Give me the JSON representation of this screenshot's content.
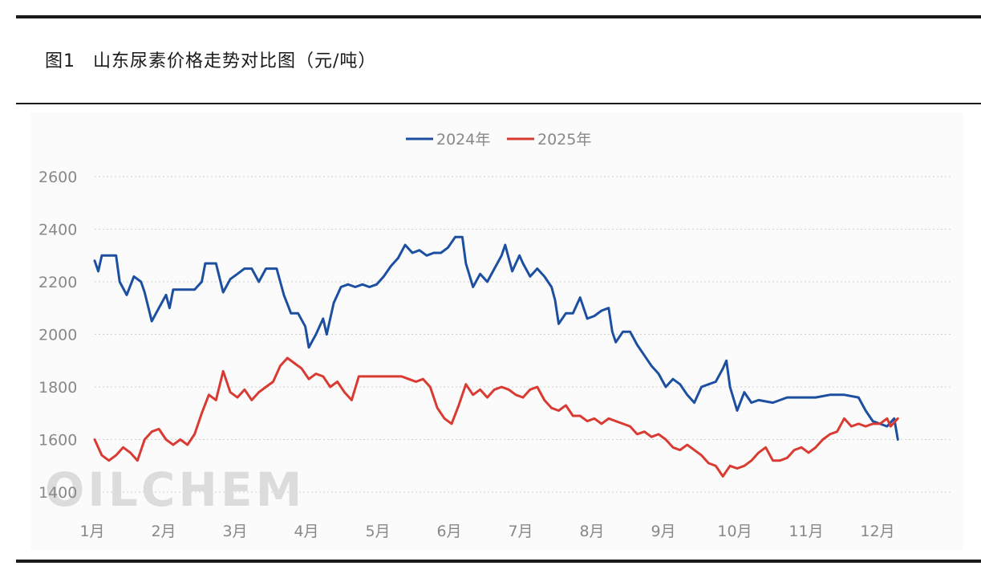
{
  "figure": {
    "number": "图1",
    "title": "山东尿素价格走势对比图（元/吨）"
  },
  "watermark": "OILCHEM",
  "colors": {
    "series_2024": "#1c4fa0",
    "series_2025": "#d93a31",
    "grid": "#d0d0d0",
    "axis_text": "#888888"
  },
  "chart_data": {
    "type": "line",
    "title": "",
    "xlabel": "",
    "ylabel": "",
    "ylim": [
      1400,
      2600
    ],
    "yticks": [
      1400,
      1600,
      1800,
      2000,
      2200,
      2400,
      2600
    ],
    "xlim": [
      1,
      13
    ],
    "x_tick_positions": [
      1,
      2,
      3,
      4,
      5,
      6,
      7,
      8,
      9,
      10,
      11,
      12
    ],
    "x_tick_labels": [
      "1月",
      "2月",
      "3月",
      "4月",
      "5月",
      "6月",
      "7月",
      "8月",
      "9月",
      "10月",
      "11月",
      "12月"
    ],
    "grid": true,
    "legend_position": "top-center",
    "series": [
      {
        "name": "2024年",
        "color": "#1c4fa0",
        "points": [
          [
            1.0,
            2280
          ],
          [
            1.05,
            2240
          ],
          [
            1.1,
            2300
          ],
          [
            1.2,
            2300
          ],
          [
            1.3,
            2300
          ],
          [
            1.35,
            2200
          ],
          [
            1.45,
            2150
          ],
          [
            1.55,
            2220
          ],
          [
            1.65,
            2200
          ],
          [
            1.7,
            2160
          ],
          [
            1.8,
            2050
          ],
          [
            1.9,
            2100
          ],
          [
            2.0,
            2150
          ],
          [
            2.05,
            2100
          ],
          [
            2.1,
            2170
          ],
          [
            2.2,
            2170
          ],
          [
            2.3,
            2170
          ],
          [
            2.4,
            2170
          ],
          [
            2.5,
            2200
          ],
          [
            2.55,
            2270
          ],
          [
            2.7,
            2270
          ],
          [
            2.8,
            2160
          ],
          [
            2.9,
            2210
          ],
          [
            3.0,
            2230
          ],
          [
            3.1,
            2250
          ],
          [
            3.2,
            2250
          ],
          [
            3.3,
            2200
          ],
          [
            3.4,
            2250
          ],
          [
            3.55,
            2250
          ],
          [
            3.65,
            2150
          ],
          [
            3.75,
            2080
          ],
          [
            3.85,
            2080
          ],
          [
            3.95,
            2030
          ],
          [
            4.0,
            1950
          ],
          [
            4.1,
            2000
          ],
          [
            4.2,
            2060
          ],
          [
            4.25,
            2000
          ],
          [
            4.35,
            2120
          ],
          [
            4.45,
            2180
          ],
          [
            4.55,
            2190
          ],
          [
            4.65,
            2180
          ],
          [
            4.75,
            2190
          ],
          [
            4.85,
            2180
          ],
          [
            4.95,
            2190
          ],
          [
            5.05,
            2220
          ],
          [
            5.15,
            2260
          ],
          [
            5.25,
            2290
          ],
          [
            5.35,
            2340
          ],
          [
            5.45,
            2310
          ],
          [
            5.55,
            2320
          ],
          [
            5.65,
            2300
          ],
          [
            5.75,
            2310
          ],
          [
            5.85,
            2310
          ],
          [
            5.95,
            2330
          ],
          [
            6.05,
            2370
          ],
          [
            6.15,
            2370
          ],
          [
            6.2,
            2270
          ],
          [
            6.3,
            2180
          ],
          [
            6.4,
            2230
          ],
          [
            6.5,
            2200
          ],
          [
            6.6,
            2250
          ],
          [
            6.7,
            2300
          ],
          [
            6.75,
            2340
          ],
          [
            6.85,
            2240
          ],
          [
            6.95,
            2300
          ],
          [
            7.0,
            2270
          ],
          [
            7.1,
            2220
          ],
          [
            7.2,
            2250
          ],
          [
            7.3,
            2220
          ],
          [
            7.4,
            2180
          ],
          [
            7.45,
            2130
          ],
          [
            7.5,
            2040
          ],
          [
            7.6,
            2080
          ],
          [
            7.7,
            2080
          ],
          [
            7.8,
            2140
          ],
          [
            7.9,
            2060
          ],
          [
            8.0,
            2070
          ],
          [
            8.1,
            2090
          ],
          [
            8.2,
            2100
          ],
          [
            8.25,
            2010
          ],
          [
            8.3,
            1970
          ],
          [
            8.4,
            2010
          ],
          [
            8.5,
            2010
          ],
          [
            8.6,
            1960
          ],
          [
            8.7,
            1920
          ],
          [
            8.8,
            1880
          ],
          [
            8.9,
            1850
          ],
          [
            9.0,
            1800
          ],
          [
            9.1,
            1830
          ],
          [
            9.2,
            1810
          ],
          [
            9.3,
            1770
          ],
          [
            9.4,
            1740
          ],
          [
            9.5,
            1800
          ],
          [
            9.6,
            1810
          ],
          [
            9.7,
            1820
          ],
          [
            9.8,
            1870
          ],
          [
            9.85,
            1900
          ],
          [
            9.9,
            1800
          ],
          [
            10.0,
            1710
          ],
          [
            10.1,
            1780
          ],
          [
            10.2,
            1740
          ],
          [
            10.3,
            1750
          ],
          [
            10.5,
            1740
          ],
          [
            10.7,
            1760
          ],
          [
            10.9,
            1760
          ],
          [
            11.1,
            1760
          ],
          [
            11.3,
            1770
          ],
          [
            11.5,
            1770
          ],
          [
            11.7,
            1760
          ],
          [
            11.8,
            1710
          ],
          [
            11.9,
            1670
          ],
          [
            12.0,
            1660
          ],
          [
            12.1,
            1650
          ],
          [
            12.2,
            1680
          ],
          [
            12.25,
            1600
          ]
        ]
      },
      {
        "name": "2025年",
        "color": "#d93a31",
        "points": [
          [
            1.0,
            1600
          ],
          [
            1.1,
            1540
          ],
          [
            1.2,
            1520
          ],
          [
            1.3,
            1540
          ],
          [
            1.4,
            1570
          ],
          [
            1.5,
            1550
          ],
          [
            1.6,
            1520
          ],
          [
            1.7,
            1600
          ],
          [
            1.8,
            1630
          ],
          [
            1.9,
            1640
          ],
          [
            2.0,
            1600
          ],
          [
            2.1,
            1580
          ],
          [
            2.2,
            1600
          ],
          [
            2.3,
            1580
          ],
          [
            2.4,
            1620
          ],
          [
            2.5,
            1700
          ],
          [
            2.6,
            1770
          ],
          [
            2.7,
            1750
          ],
          [
            2.8,
            1860
          ],
          [
            2.9,
            1780
          ],
          [
            3.0,
            1760
          ],
          [
            3.1,
            1790
          ],
          [
            3.2,
            1750
          ],
          [
            3.3,
            1780
          ],
          [
            3.4,
            1800
          ],
          [
            3.5,
            1820
          ],
          [
            3.6,
            1880
          ],
          [
            3.7,
            1910
          ],
          [
            3.8,
            1890
          ],
          [
            3.9,
            1870
          ],
          [
            4.0,
            1830
          ],
          [
            4.1,
            1850
          ],
          [
            4.2,
            1840
          ],
          [
            4.3,
            1800
          ],
          [
            4.4,
            1820
          ],
          [
            4.5,
            1780
          ],
          [
            4.6,
            1750
          ],
          [
            4.7,
            1840
          ],
          [
            4.8,
            1840
          ],
          [
            4.9,
            1840
          ],
          [
            5.0,
            1840
          ],
          [
            5.1,
            1840
          ],
          [
            5.2,
            1840
          ],
          [
            5.3,
            1840
          ],
          [
            5.4,
            1830
          ],
          [
            5.5,
            1820
          ],
          [
            5.6,
            1830
          ],
          [
            5.7,
            1800
          ],
          [
            5.75,
            1760
          ],
          [
            5.8,
            1720
          ],
          [
            5.9,
            1680
          ],
          [
            6.0,
            1660
          ],
          [
            6.1,
            1730
          ],
          [
            6.2,
            1810
          ],
          [
            6.3,
            1770
          ],
          [
            6.4,
            1790
          ],
          [
            6.5,
            1760
          ],
          [
            6.6,
            1790
          ],
          [
            6.7,
            1800
          ],
          [
            6.8,
            1790
          ],
          [
            6.9,
            1770
          ],
          [
            7.0,
            1760
          ],
          [
            7.1,
            1790
          ],
          [
            7.2,
            1800
          ],
          [
            7.3,
            1750
          ],
          [
            7.4,
            1720
          ],
          [
            7.5,
            1710
          ],
          [
            7.6,
            1730
          ],
          [
            7.7,
            1690
          ],
          [
            7.8,
            1690
          ],
          [
            7.9,
            1670
          ],
          [
            8.0,
            1680
          ],
          [
            8.1,
            1660
          ],
          [
            8.2,
            1680
          ],
          [
            8.3,
            1670
          ],
          [
            8.4,
            1660
          ],
          [
            8.5,
            1650
          ],
          [
            8.6,
            1620
          ],
          [
            8.7,
            1630
          ],
          [
            8.8,
            1610
          ],
          [
            8.9,
            1620
          ],
          [
            9.0,
            1600
          ],
          [
            9.1,
            1570
          ],
          [
            9.2,
            1560
          ],
          [
            9.3,
            1580
          ],
          [
            9.4,
            1560
          ],
          [
            9.5,
            1540
          ],
          [
            9.6,
            1510
          ],
          [
            9.7,
            1500
          ],
          [
            9.8,
            1460
          ],
          [
            9.9,
            1500
          ],
          [
            10.0,
            1490
          ],
          [
            10.1,
            1500
          ],
          [
            10.2,
            1520
          ],
          [
            10.3,
            1550
          ],
          [
            10.4,
            1570
          ],
          [
            10.5,
            1520
          ],
          [
            10.6,
            1520
          ],
          [
            10.7,
            1530
          ],
          [
            10.8,
            1560
          ],
          [
            10.9,
            1570
          ],
          [
            11.0,
            1550
          ],
          [
            11.1,
            1570
          ],
          [
            11.2,
            1600
          ],
          [
            11.3,
            1620
          ],
          [
            11.4,
            1630
          ],
          [
            11.5,
            1680
          ],
          [
            11.6,
            1650
          ],
          [
            11.7,
            1660
          ],
          [
            11.8,
            1650
          ],
          [
            11.9,
            1660
          ],
          [
            12.0,
            1660
          ],
          [
            12.1,
            1680
          ],
          [
            12.15,
            1650
          ],
          [
            12.25,
            1680
          ]
        ]
      }
    ]
  }
}
